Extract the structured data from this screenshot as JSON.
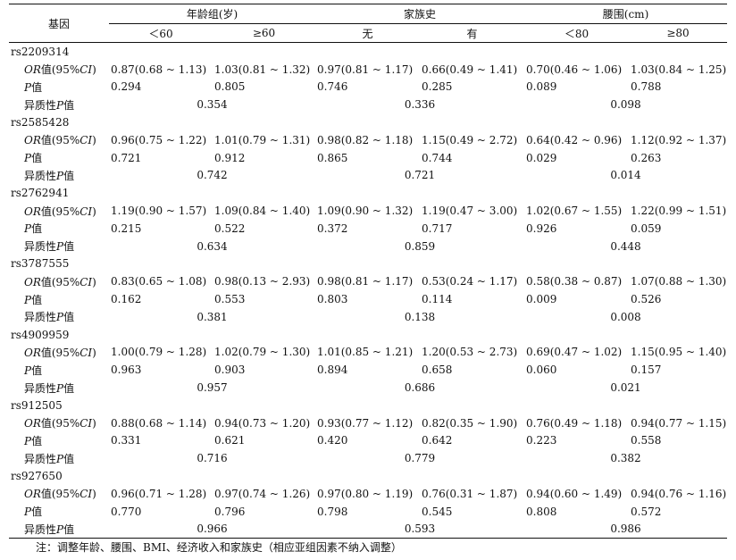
{
  "header": {
    "gene_label": "基因",
    "groups": [
      {
        "label": "年龄组(岁)",
        "subs": [
          "＜60",
          "≥60"
        ]
      },
      {
        "label": "家族史",
        "subs": [
          "无",
          "有"
        ]
      },
      {
        "label": "腰围(cm)",
        "subs": [
          "＜80",
          "≥80"
        ]
      }
    ]
  },
  "row_labels": {
    "or": "OR",
    "or_suffix": "值(95%",
    "ci": "CI",
    "close": ")",
    "p_letter": "P",
    "p_suffix": "值",
    "het_prefix": "异质性",
    "het_letter": "P",
    "het_suffix": "值"
  },
  "genes": [
    {
      "name": "rs2209314",
      "or": [
        "0.87(0.68 ~ 1.13)",
        "1.03(0.81 ~ 1.32)",
        "0.97(0.81 ~ 1.17)",
        "0.66(0.49 ~ 1.41)",
        "0.70(0.46 ~ 1.06)",
        "1.03(0.84 ~ 1.25)"
      ],
      "p": [
        "0.294",
        "0.805",
        "0.746",
        "0.285",
        "0.089",
        "0.788"
      ],
      "het": [
        "0.354",
        "0.336",
        "0.098"
      ]
    },
    {
      "name": "rs2585428",
      "or": [
        "0.96(0.75 ~ 1.22)",
        "1.01(0.79 ~ 1.31)",
        "0.98(0.82 ~ 1.18)",
        "1.15(0.49 ~ 2.72)",
        "0.64(0.42 ~ 0.96)",
        "1.12(0.92 ~ 1.37)"
      ],
      "p": [
        "0.721",
        "0.912",
        "0.865",
        "0.744",
        "0.029",
        "0.263"
      ],
      "het": [
        "0.742",
        "0.721",
        "0.014"
      ]
    },
    {
      "name": "rs2762941",
      "or": [
        "1.19(0.90 ~ 1.57)",
        "1.09(0.84 ~ 1.40)",
        "1.09(0.90 ~ 1.32)",
        "1.19(0.47 ~ 3.00)",
        "1.02(0.67 ~ 1.55)",
        "1.22(0.99 ~ 1.51)"
      ],
      "p": [
        "0.215",
        "0.522",
        "0.372",
        "0.717",
        "0.926",
        "0.059"
      ],
      "het": [
        "0.634",
        "0.859",
        "0.448"
      ]
    },
    {
      "name": "rs3787555",
      "or": [
        "0.83(0.65 ~ 1.08)",
        "0.98(0.13 ~ 2.93)",
        "0.98(0.81 ~ 1.17)",
        "0.53(0.24 ~ 1.17)",
        "0.58(0.38 ~ 0.87)",
        "1.07(0.88 ~ 1.30)"
      ],
      "p": [
        "0.162",
        "0.553",
        "0.803",
        "0.114",
        "0.009",
        "0.526"
      ],
      "het": [
        "0.381",
        "0.138",
        "0.008"
      ]
    },
    {
      "name": "rs4909959",
      "or": [
        "1.00(0.79 ~ 1.28)",
        "1.02(0.79 ~ 1.30)",
        "1.01(0.85 ~ 1.21)",
        "1.20(0.53 ~ 2.73)",
        "0.69(0.47 ~ 1.02)",
        "1.15(0.95 ~ 1.40)"
      ],
      "p": [
        "0.963",
        "0.903",
        "0.894",
        "0.658",
        "0.060",
        "0.157"
      ],
      "het": [
        "0.957",
        "0.686",
        "0.021"
      ]
    },
    {
      "name": "rs912505",
      "or": [
        "0.88(0.68 ~ 1.14)",
        "0.94(0.73 ~ 1.20)",
        "0.93(0.77 ~ 1.12)",
        "0.82(0.35 ~ 1.90)",
        "0.76(0.49 ~ 1.18)",
        "0.94(0.77 ~ 1.15)"
      ],
      "p": [
        "0.331",
        "0.621",
        "0.420",
        "0.642",
        "0.223",
        "0.558"
      ],
      "het": [
        "0.716",
        "0.779",
        "0.382"
      ]
    },
    {
      "name": "rs927650",
      "or": [
        "0.96(0.71 ~ 1.28)",
        "0.97(0.74 ~ 1.26)",
        "0.97(0.80 ~ 1.19)",
        "0.76(0.31 ~ 1.87)",
        "0.94(0.60 ~ 1.49)",
        "0.94(0.76 ~ 1.16)"
      ],
      "p": [
        "0.770",
        "0.796",
        "0.798",
        "0.545",
        "0.808",
        "0.572"
      ],
      "het": [
        "0.966",
        "0.593",
        "0.986"
      ]
    }
  ],
  "note": "注：调整年龄、腰围、BMI、经济收入和家族史（相应亚组因素不纳入调整）"
}
